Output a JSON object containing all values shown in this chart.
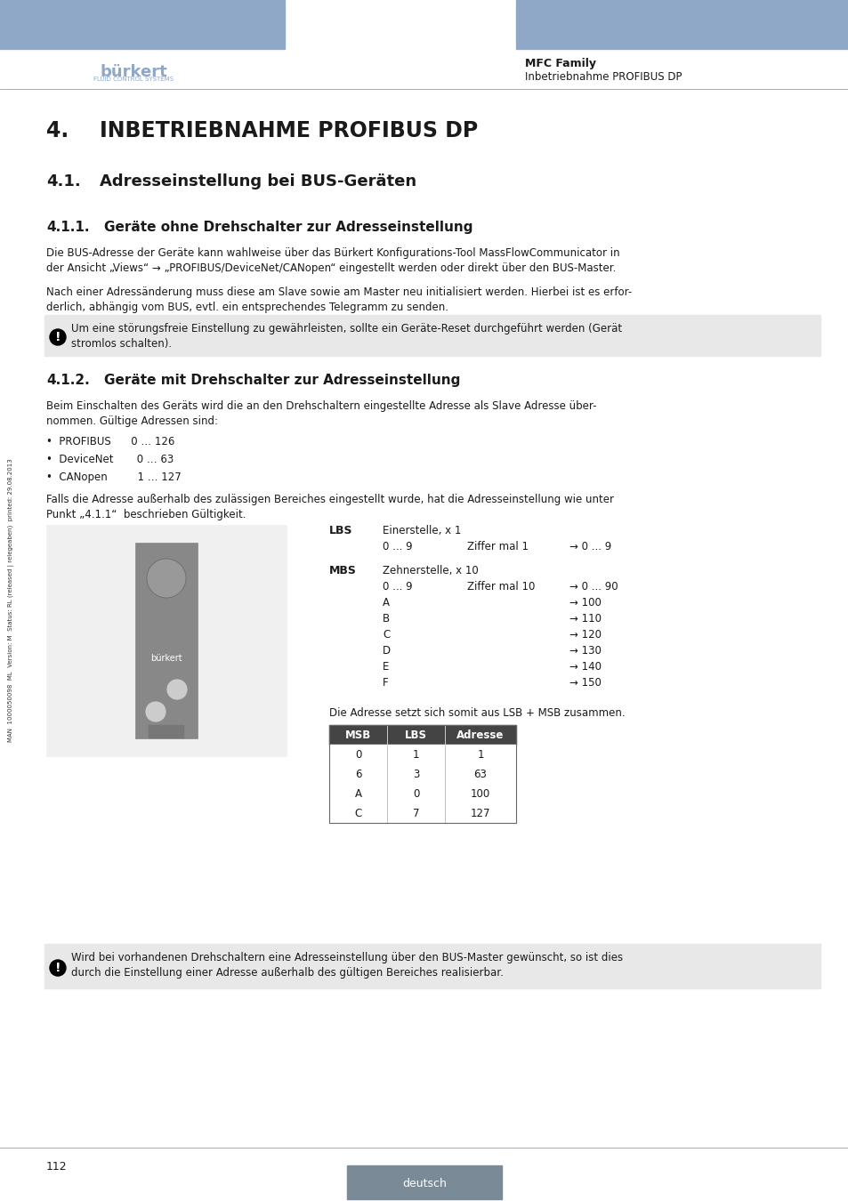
{
  "header_color": "#8FA8C8",
  "header_text_bold": "MFC Family",
  "header_text_normal": "Inbetriebnahme PROFIBUS DP",
  "footer_color": "#7A8A96",
  "footer_text": "deutsch",
  "page_number": "112",
  "title_h1": "4.       INBETRIEBNAHME PROFIBUS DP",
  "title_h2": "4.1.     Adresseinstellung bei BUS-Geräten",
  "title_h3": "4.1.1.    Geräte ohne Drehschalter zur Adresseinstellung",
  "para1": "Die BUS-Adresse der Geräte kann wahlweise über das Bürkert Konfigurations-Tool MassFlowCommunicator in\nder Ansicht „Views“ → „PROFIBUS/DeviceNet/CANopen“ eingestellt werden oder direkt über den BUS-Master.",
  "para2": "Nach einer Adressänderung muss diese am Slave sowie am Master neu initialisiert werden. Hierbei ist es erfor-\nderlich, abhängig vom BUS, evtl. ein entsprechendes Telegramm zu senden.",
  "note1": "Um eine störungsfreie Einstellung zu gewährleisten, sollte ein Geräte-Reset durchgeführt werden (Gerät\nstromlos schalten).",
  "title_h3_2": "4.1.2.    Geräte mit Drehschalter zur Adresseinstellung",
  "para3": "Beim Einschalten des Geräts wird die an den Drehschaltern eingestellte Adresse als Slave Adresse über-\nnommen. Gültige Adressen sind:",
  "bullet1": "•  PROFIBUS    0 … 126",
  "bullet2": "•  DeviceNet     0 … 63",
  "bullet3": "•  CANopen      1 … 127",
  "para4": "Falls die Adresse außerhalb des zulässigen Bereiches eingestellt wurde, hat die Adresseinstellung wie unter\nPunkt „4.1.1“  beschrieben Gültigkeit.",
  "lbs_label": "LBS",
  "lbs_desc": "Einerstelle, x 1",
  "lbs_row1_a": "0 ... 9",
  "lbs_row1_b": "Ziffer mal 1",
  "lbs_row1_c": "→ 0 ... 9",
  "mbs_label": "MBS",
  "mbs_desc": "Zehnerstelle, x 10",
  "mbs_row1_a": "0 ... 9",
  "mbs_row1_b": "Ziffer mal 10",
  "mbs_row1_c": "→ 0 ... 90",
  "mbs_row2_a": "A",
  "mbs_row2_c": "→ 100",
  "mbs_row3_a": "B",
  "mbs_row3_c": "→ 110",
  "mbs_row4_a": "C",
  "mbs_row4_c": "→ 120",
  "mbs_row5_a": "D",
  "mbs_row5_c": "→ 130",
  "mbs_row6_a": "E",
  "mbs_row6_c": "→ 140",
  "mbs_row7_a": "F",
  "mbs_row7_c": "→ 150",
  "table_caption": "Die Adresse setzt sich somit aus LSB + MSB zusammen.",
  "table_headers": [
    "MSB",
    "LBS",
    "Adresse"
  ],
  "table_rows": [
    [
      "0",
      "1",
      "1"
    ],
    [
      "6",
      "3",
      "63"
    ],
    [
      "A",
      "0",
      "100"
    ],
    [
      "C",
      "7",
      "127"
    ]
  ],
  "note2": "Wird bei vorhandenen Drehschaltern eine Adresseinstellung über den BUS-Master gewünscht, so ist dies\ndurch die Einstellung einer Adresse außerhalb des gültigen Bereiches realisierbar.",
  "sidebar_text": "MAN  1000050098  ML  Version: M  Status: RL (released | relegeaben)  printed: 29.08.2013",
  "bg_color": "#FFFFFF",
  "note_bg_color": "#E8E8E8",
  "text_color": "#1A1A1A",
  "header_line_color": "#AAAAAA"
}
